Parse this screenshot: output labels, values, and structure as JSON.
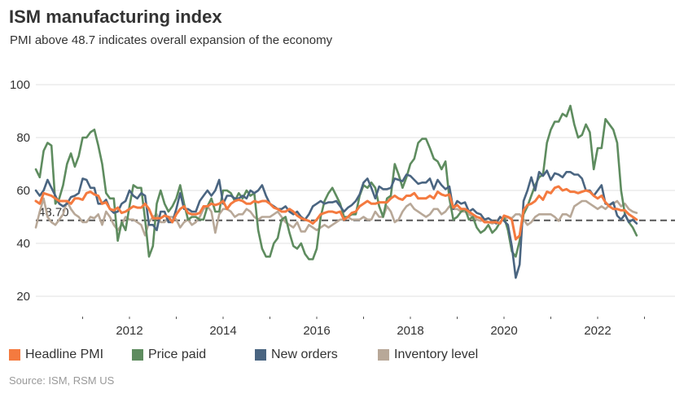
{
  "header": {
    "title": "ISM manufacturing index",
    "subtitle": "PMI above 48.7 indicates overall expansion of the economy"
  },
  "source": "Source: ISM, RSM US",
  "chart_data": {
    "type": "line",
    "title": "ISM manufacturing index",
    "subtitle": "PMI above 48.7 indicates overall expansion of the economy",
    "x_start": "2010-01",
    "x_end": "2022-11",
    "x_frequency": "monthly",
    "xlim": [
      2010,
      2023
    ],
    "x_tick_labels": [
      "2012",
      "2014",
      "2016",
      "2018",
      "2020",
      "2022"
    ],
    "ylim": [
      20,
      100
    ],
    "y_ticks": [
      20,
      40,
      60,
      80,
      100
    ],
    "y_tick_labels": [
      "20",
      "40",
      "60",
      "80",
      "100"
    ],
    "grid": "horizontal",
    "legend_position": "bottom",
    "reference_line": {
      "value": 48.7,
      "label": "48.70",
      "style": "dashed",
      "color": "#555555"
    },
    "series": [
      {
        "name": "Headline PMI",
        "color": "#f47a3f",
        "values": [
          56,
          55,
          59,
          58.5,
          58,
          57,
          56,
          56,
          56,
          55,
          57,
          57,
          56.5,
          59,
          59.5,
          58.5,
          58,
          55,
          55.5,
          53,
          52.5,
          53.5,
          51.5,
          52,
          53,
          54,
          53.5,
          53.5,
          55,
          53,
          49.5,
          49.5,
          49.5,
          50.5,
          50,
          48,
          51,
          53,
          54,
          51.5,
          51,
          51,
          51.5,
          54,
          54,
          55,
          54.5,
          55,
          56,
          53,
          55,
          56,
          56.5,
          56,
          55,
          55,
          56,
          55.5,
          56,
          56,
          55,
          53.5,
          53,
          52,
          52,
          53,
          52,
          50.5,
          49.5,
          49,
          48.5,
          47.5,
          49,
          51,
          51.5,
          52,
          52,
          51.5,
          52,
          49,
          50,
          51.5,
          52,
          54,
          55,
          56,
          55,
          55,
          55.5,
          55.5,
          55.5,
          57,
          58,
          57,
          56.5,
          58,
          58,
          59,
          57,
          57,
          57,
          58,
          57,
          59.5,
          58.5,
          58,
          58.5,
          53.5,
          54.5,
          53,
          53,
          52,
          51,
          50,
          49.5,
          48,
          48,
          48,
          48,
          47.5,
          50.5,
          50,
          49,
          41.5,
          43,
          52.5,
          54.5,
          55,
          56,
          58,
          56.5,
          59.5,
          59,
          61,
          61.5,
          60,
          60.5,
          59.5,
          59.5,
          59,
          59.5,
          60,
          59.5,
          58,
          57,
          58,
          55.5,
          54,
          53,
          53,
          52.5,
          52.5,
          51,
          50,
          49
        ]
      },
      {
        "name": "Price paid",
        "color": "#5e8c5f",
        "values": [
          68,
          65,
          75,
          78,
          77,
          55,
          57,
          62,
          70,
          74,
          69,
          73,
          80,
          80,
          82,
          83,
          77,
          70,
          59,
          57,
          57,
          41,
          48,
          45,
          54,
          62,
          61,
          61,
          49,
          35,
          39,
          55,
          60,
          55,
          52,
          54,
          57,
          62,
          55,
          49,
          50,
          50,
          49,
          49,
          54,
          57,
          52,
          52,
          60,
          60,
          59,
          56,
          59,
          57,
          60,
          58,
          59,
          45,
          38,
          35,
          35,
          40,
          42,
          49,
          50,
          44,
          39,
          38,
          40,
          36,
          34,
          34,
          38,
          50,
          56,
          59,
          61,
          58,
          55,
          50,
          50,
          51,
          51,
          58,
          62,
          61,
          63,
          61,
          54,
          50,
          57,
          58,
          70,
          66,
          61,
          65,
          70,
          72,
          78,
          79.5,
          79.5,
          76,
          72,
          71,
          68,
          71,
          57,
          49,
          50,
          52,
          53,
          49,
          50,
          46,
          44,
          45,
          47,
          44,
          45.5,
          48,
          50,
          45,
          37,
          35,
          41,
          51,
          54,
          58,
          62,
          65,
          66,
          78,
          83,
          86,
          86,
          89,
          88,
          92,
          85,
          80,
          81,
          85,
          82,
          68,
          76,
          76,
          87,
          85,
          83,
          78,
          60,
          51,
          48,
          46,
          43
        ]
      },
      {
        "name": "New orders",
        "color": "#4a6581",
        "values": [
          60,
          58,
          60,
          64,
          61,
          58,
          55,
          54,
          55,
          57.5,
          58,
          59,
          64.5,
          64,
          61,
          61,
          55,
          55,
          56.5,
          53,
          51.5,
          52,
          55,
          56,
          60,
          58,
          57,
          59,
          58,
          47,
          47,
          45,
          52,
          52,
          48,
          48,
          53,
          59,
          53,
          53,
          52,
          52,
          56,
          58,
          60,
          58,
          60,
          64,
          55,
          58,
          58,
          57,
          57,
          58,
          57,
          60,
          59,
          60,
          62,
          58,
          55,
          54,
          53,
          53,
          54,
          52,
          51,
          52,
          50,
          49,
          51,
          54,
          55,
          56,
          55,
          55.5,
          55.5,
          56,
          54,
          52,
          53.5,
          54.5,
          56,
          58.5,
          63,
          64.5,
          61,
          57,
          61.5,
          60.5,
          60.5,
          61,
          64.5,
          64,
          63.5,
          66,
          65.5,
          64,
          62.5,
          63,
          63,
          64.5,
          60.5,
          64,
          62,
          60.5,
          61.5,
          53,
          56,
          55,
          55.5,
          52,
          53,
          51.5,
          51,
          49,
          49.5,
          48.5,
          47.5,
          50,
          48.5,
          47,
          39,
          27,
          32,
          56,
          60,
          65,
          60,
          67,
          65.5,
          67.5,
          64,
          66.5,
          66,
          65,
          67,
          67,
          66,
          66,
          64.5,
          60,
          60,
          58,
          60,
          62,
          55,
          54.5,
          55.5,
          50.5,
          49,
          51,
          48,
          49,
          47.5
        ]
      },
      {
        "name": "Inventory level",
        "color": "#b8a898",
        "values": [
          46,
          52,
          57,
          50,
          48,
          47,
          49,
          51,
          56,
          53,
          51,
          50,
          48,
          48,
          50,
          49.5,
          51,
          47,
          52,
          50,
          47,
          45,
          47,
          50,
          49,
          49,
          48,
          47,
          43,
          48,
          50,
          51,
          48,
          48,
          50,
          50,
          49,
          46,
          48,
          49,
          47,
          48,
          50,
          53,
          54,
          52,
          44,
          51,
          53,
          53,
          52,
          50,
          51,
          51,
          53,
          52,
          50,
          49,
          50,
          50,
          50,
          51,
          52,
          50,
          48,
          47,
          46,
          48,
          44.5,
          44.5,
          47,
          46,
          45,
          46,
          47,
          46,
          47,
          48,
          49,
          49,
          50,
          49,
          49,
          49,
          50,
          49,
          49,
          52,
          50,
          50,
          54,
          52,
          48,
          49,
          52,
          54,
          55,
          53,
          52,
          51,
          50,
          51,
          53,
          53,
          51,
          52,
          54,
          53,
          53,
          52,
          52,
          51,
          50,
          49,
          48.5,
          49,
          48,
          47.5,
          48,
          50,
          49,
          50,
          49.5,
          51,
          51,
          49,
          47,
          48,
          50,
          51,
          51,
          51,
          51,
          50,
          48.5,
          51,
          51,
          50,
          54,
          55,
          56,
          56,
          55,
          54,
          53,
          54,
          53,
          54.5,
          55,
          56,
          54,
          55,
          53,
          52,
          51.5
        ]
      }
    ]
  }
}
